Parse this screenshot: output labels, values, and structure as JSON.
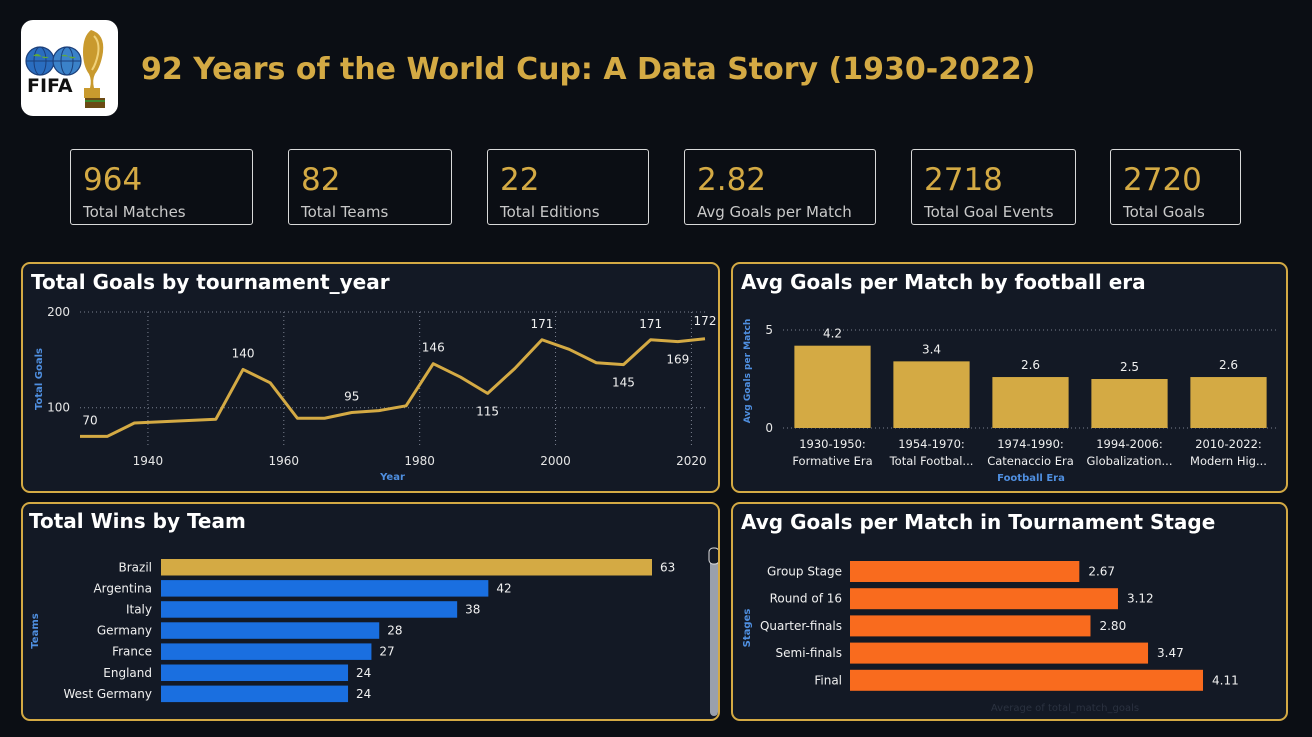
{
  "header": {
    "logo_text": "FIFA",
    "title": "92 Years of the World Cup: A Data Story (1930-2022)"
  },
  "kpis": [
    {
      "value": "964",
      "label": "Total Matches"
    },
    {
      "value": "82",
      "label": "Total Teams"
    },
    {
      "value": "22",
      "label": "Total Editions"
    },
    {
      "value": "2.82",
      "label": "Avg Goals per Match"
    },
    {
      "value": "2718",
      "label": "Total Goal Events"
    },
    {
      "value": "2720",
      "label": "Total Goals"
    }
  ],
  "colors": {
    "gold": "#d4aa44",
    "blue": "#1a6fe0",
    "orange": "#f96b1e",
    "panel_bg": "#131925",
    "page_bg": "#0b0e14"
  },
  "chart_data": [
    {
      "id": "goals_by_year",
      "type": "line",
      "title": "Total Goals by tournament_year",
      "xlabel": "Year",
      "ylabel": "Total Goals",
      "x": [
        1930,
        1934,
        1938,
        1950,
        1954,
        1958,
        1962,
        1966,
        1970,
        1974,
        1978,
        1982,
        1986,
        1990,
        1994,
        1998,
        2002,
        2006,
        2010,
        2014,
        2018,
        2022
      ],
      "values": [
        70,
        70,
        84,
        88,
        140,
        126,
        89,
        89,
        95,
        97,
        102,
        146,
        132,
        115,
        141,
        171,
        161,
        147,
        145,
        171,
        169,
        172
      ],
      "data_labels": [
        {
          "x": 1930,
          "text": "70"
        },
        {
          "x": 1954,
          "text": "140"
        },
        {
          "x": 1970,
          "text": "95"
        },
        {
          "x": 1982,
          "text": "146"
        },
        {
          "x": 1990,
          "text": "115"
        },
        {
          "x": 1998,
          "text": "171"
        },
        {
          "x": 2010,
          "text": "145"
        },
        {
          "x": 2014,
          "text": "171"
        },
        {
          "x": 2018,
          "text": "169"
        },
        {
          "x": 2022,
          "text": "172"
        }
      ],
      "x_ticks": [
        "1940",
        "1960",
        "1980",
        "2000",
        "2020"
      ],
      "y_ticks": [
        "100",
        "200"
      ],
      "xlim": [
        1930,
        2022
      ],
      "ylim": [
        60,
        200
      ],
      "grid": true
    },
    {
      "id": "avg_goals_by_era",
      "type": "bar",
      "title": "Avg Goals per Match by football era",
      "xlabel": "Football Era",
      "ylabel": "Avg Goals per Match",
      "categories": [
        [
          "1930-1950:",
          "Formative Era"
        ],
        [
          "1954-1970:",
          "Total Footbal..."
        ],
        [
          "1974-1990:",
          "Catenaccio Era"
        ],
        [
          "1994-2006:",
          "Globalization..."
        ],
        [
          "2010-2022:",
          "Modern Hig..."
        ]
      ],
      "values": [
        4.2,
        3.4,
        2.6,
        2.5,
        2.6
      ],
      "value_labels": [
        "4.2",
        "3.4",
        "2.6",
        "2.5",
        "2.6"
      ],
      "y_ticks": [
        "0",
        "5"
      ],
      "ylim": [
        0,
        5
      ],
      "grid": true
    },
    {
      "id": "wins_by_team",
      "type": "bar",
      "orientation": "horizontal",
      "title": "Total Wins by Team",
      "ylabel": "Teams",
      "categories": [
        "Brazil",
        "Argentina",
        "Italy",
        "Germany",
        "France",
        "England",
        "West Germany"
      ],
      "values": [
        63,
        42,
        38,
        28,
        27,
        24,
        24
      ],
      "xlim": [
        0,
        63
      ]
    },
    {
      "id": "avg_goals_by_stage",
      "type": "bar",
      "orientation": "horizontal",
      "title": "Avg Goals per Match in Tournament Stage",
      "ylabel": "Stages",
      "xlabel": "Average of total_match_goals",
      "categories": [
        "Group Stage",
        "Round of 16",
        "Quarter-finals",
        "Semi-finals",
        "Final"
      ],
      "values": [
        2.67,
        3.12,
        2.8,
        3.47,
        4.11
      ],
      "value_labels": [
        "2.67",
        "3.12",
        "2.80",
        "3.47",
        "4.11"
      ],
      "xlim": [
        0,
        4.11
      ]
    }
  ]
}
